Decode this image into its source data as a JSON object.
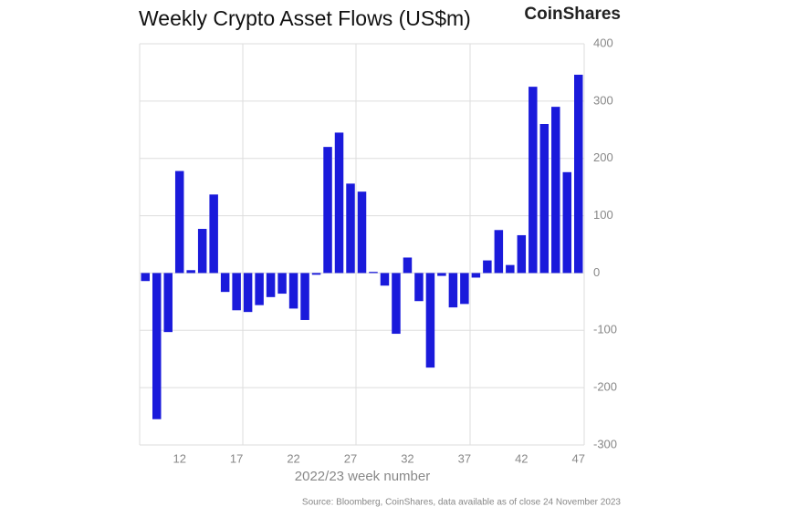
{
  "chart_data": {
    "type": "bar",
    "title": "Weekly Crypto Asset Flows (US$m)",
    "brand": "CoinShares",
    "x_label": "2022/23 week number",
    "source": "Source: Bloomberg, CoinShares, data available as of close 24 November 2023",
    "categories": [
      null,
      null,
      null,
      "12",
      null,
      null,
      null,
      null,
      "17",
      null,
      null,
      null,
      null,
      "22",
      null,
      null,
      null,
      null,
      "27",
      null,
      null,
      null,
      null,
      "32",
      null,
      null,
      null,
      null,
      "37",
      null,
      null,
      null,
      null,
      "42",
      null,
      null,
      null,
      null,
      "47"
    ],
    "values": [
      -14,
      -255,
      -103,
      178,
      5,
      77,
      137,
      -33,
      -65,
      -68,
      -56,
      -42,
      -36,
      -62,
      -82,
      -3,
      220,
      245,
      156,
      142,
      2,
      -22,
      -106,
      27,
      -49,
      -165,
      -5,
      -60,
      -54,
      -8,
      22,
      75,
      14,
      66,
      325,
      260,
      290,
      176,
      346
    ],
    "color": "#1a1adb",
    "ylim": [
      -300,
      400
    ],
    "yticks": [
      -300,
      -200,
      -100,
      0,
      100,
      200,
      300,
      400
    ],
    "grid": true
  }
}
